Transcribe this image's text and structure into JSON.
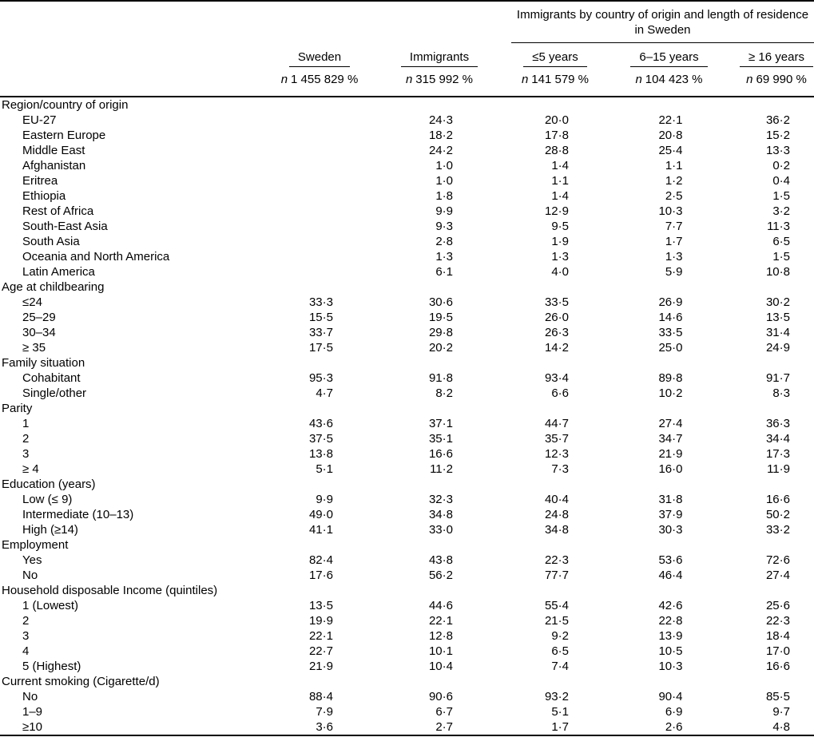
{
  "table": {
    "group_header": "Immigrants by country of origin and length of residence in Sweden",
    "n_label": "n",
    "columns": [
      {
        "label": "Sweden",
        "n": "1 455 829 %"
      },
      {
        "label": "Immigrants",
        "n": "315 992 %"
      },
      {
        "label": "≤5 years",
        "n": "141 579 %"
      },
      {
        "label": "6–15 years",
        "n": "104 423 %"
      },
      {
        "label": "≥ 16 years",
        "n": "69 990 %"
      }
    ],
    "sections": [
      {
        "label": "Region/country of origin",
        "rows": [
          {
            "label": "EU-27",
            "values": [
              "",
              "24·3",
              "20·0",
              "22·1",
              "36·2"
            ]
          },
          {
            "label": "Eastern Europe",
            "values": [
              "",
              "18·2",
              "17·8",
              "20·8",
              "15·2"
            ]
          },
          {
            "label": "Middle East",
            "values": [
              "",
              "24·2",
              "28·8",
              "25·4",
              "13·3"
            ]
          },
          {
            "label": "Afghanistan",
            "values": [
              "",
              "1·0",
              "1·4",
              "1·1",
              "0·2"
            ]
          },
          {
            "label": "Eritrea",
            "values": [
              "",
              "1·0",
              "1·1",
              "1·2",
              "0·4"
            ]
          },
          {
            "label": "Ethiopia",
            "values": [
              "",
              "1·8",
              "1·4",
              "2·5",
              "1·5"
            ]
          },
          {
            "label": "Rest of Africa",
            "values": [
              "",
              "9·9",
              "12·9",
              "10·3",
              "3·2"
            ]
          },
          {
            "label": "South-East Asia",
            "values": [
              "",
              "9·3",
              "9·5",
              "7·7",
              "11·3"
            ]
          },
          {
            "label": "South Asia",
            "values": [
              "",
              "2·8",
              "1·9",
              "1·7",
              "6·5"
            ]
          },
          {
            "label": "Oceania and North America",
            "values": [
              "",
              "1·3",
              "1·3",
              "1·3",
              "1·5"
            ]
          },
          {
            "label": "Latin America",
            "values": [
              "",
              "6·1",
              "4·0",
              "5·9",
              "10·8"
            ]
          }
        ]
      },
      {
        "label": "Age at childbearing",
        "rows": [
          {
            "label": "≤24",
            "values": [
              "33·3",
              "30·6",
              "33·5",
              "26·9",
              "30·2"
            ]
          },
          {
            "label": "25–29",
            "values": [
              "15·5",
              "19·5",
              "26·0",
              "14·6",
              "13·5"
            ]
          },
          {
            "label": "30–34",
            "values": [
              "33·7",
              "29·8",
              "26·3",
              "33·5",
              "31·4"
            ]
          },
          {
            "label": "≥ 35",
            "values": [
              "17·5",
              "20·2",
              "14·2",
              "25·0",
              "24·9"
            ]
          }
        ]
      },
      {
        "label": "Family situation",
        "rows": [
          {
            "label": "Cohabitant",
            "values": [
              "95·3",
              "91·8",
              "93·4",
              "89·8",
              "91·7"
            ]
          },
          {
            "label": "Single/other",
            "values": [
              "4·7",
              "8·2",
              "6·6",
              "10·2",
              "8·3"
            ]
          }
        ]
      },
      {
        "label": "Parity",
        "rows": [
          {
            "label": "1",
            "values": [
              "43·6",
              "37·1",
              "44·7",
              "27·4",
              "36·3"
            ]
          },
          {
            "label": "2",
            "values": [
              "37·5",
              "35·1",
              "35·7",
              "34·7",
              "34·4"
            ]
          },
          {
            "label": "3",
            "values": [
              "13·8",
              "16·6",
              "12·3",
              "21·9",
              "17·3"
            ]
          },
          {
            "label": "≥ 4",
            "values": [
              "5·1",
              "11·2",
              "7·3",
              "16·0",
              "11·9"
            ]
          }
        ]
      },
      {
        "label": "Education (years)",
        "rows": [
          {
            "label": "Low (≤ 9)",
            "values": [
              "9·9",
              "32·3",
              "40·4",
              "31·8",
              "16·6"
            ]
          },
          {
            "label": "Intermediate (10–13)",
            "values": [
              "49·0",
              "34·8",
              "24·8",
              "37·9",
              "50·2"
            ]
          },
          {
            "label": "High (≥14)",
            "values": [
              "41·1",
              "33·0",
              "34·8",
              "30·3",
              "33·2"
            ]
          }
        ]
      },
      {
        "label": "Employment",
        "rows": [
          {
            "label": "Yes",
            "values": [
              "82·4",
              "43·8",
              "22·3",
              "53·6",
              "72·6"
            ]
          },
          {
            "label": "No",
            "values": [
              "17·6",
              "56·2",
              "77·7",
              "46·4",
              "27·4"
            ]
          }
        ]
      },
      {
        "label": "Household disposable Income (quintiles)",
        "rows": [
          {
            "label": "1 (Lowest)",
            "values": [
              "13·5",
              "44·6",
              "55·4",
              "42·6",
              "25·6"
            ]
          },
          {
            "label": "2",
            "values": [
              "19·9",
              "22·1",
              "21·5",
              "22·8",
              "22·3"
            ]
          },
          {
            "label": "3",
            "values": [
              "22·1",
              "12·8",
              "9·2",
              "13·9",
              "18·4"
            ]
          },
          {
            "label": "4",
            "values": [
              "22·7",
              "10·1",
              "6·5",
              "10·5",
              "17·0"
            ]
          },
          {
            "label": "5 (Highest)",
            "values": [
              "21·9",
              "10·4",
              "7·4",
              "10·3",
              "16·6"
            ]
          }
        ]
      },
      {
        "label": "Current smoking (Cigarette/d)",
        "rows": [
          {
            "label": "No",
            "values": [
              "88·4",
              "90·6",
              "93·2",
              "90·4",
              "85·5"
            ]
          },
          {
            "label": "1–9",
            "values": [
              "7·9",
              "6·7",
              "5·1",
              "6·9",
              "9·7"
            ]
          },
          {
            "label": "≥10",
            "values": [
              "3·6",
              "2·7",
              "1·7",
              "2·6",
              "4·8"
            ]
          }
        ]
      }
    ]
  }
}
